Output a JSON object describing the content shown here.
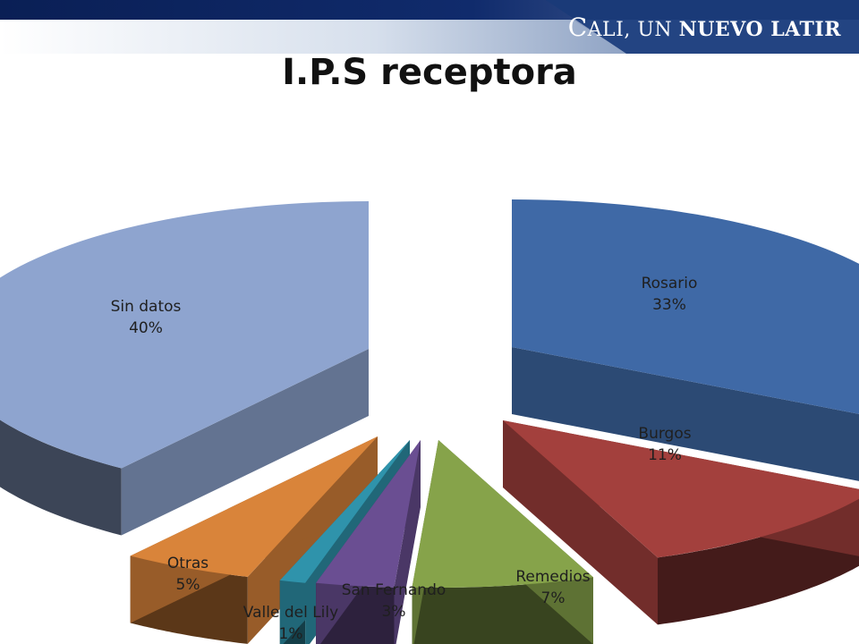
{
  "brand": {
    "initial": "C",
    "rest": "ALI, UN ",
    "highlight": "NUEVO LATIR"
  },
  "colors": {
    "bar_dark": "#0e2560",
    "bar_light": "#a9b9cf",
    "label_text": "#1f1f1f"
  },
  "chart_data": {
    "type": "pie",
    "style": "3d-exploded",
    "title": "I.P.S  receptora",
    "slices": [
      {
        "label": "Rosario",
        "percent": "33%",
        "value": 33,
        "color": "#3f69a6"
      },
      {
        "label": "Burgos",
        "percent": "11%",
        "value": 11,
        "color": "#a3403d"
      },
      {
        "label": "Remedios",
        "percent": "7%",
        "value": 7,
        "color": "#86a34a"
      },
      {
        "label": "San Fernando",
        "percent": "3%",
        "value": 3,
        "color": "#6a4e92"
      },
      {
        "label": "Valle del  Lily",
        "percent": "1%",
        "value": 1,
        "color": "#2f93ab"
      },
      {
        "label": "Otras",
        "percent": "5%",
        "value": 5,
        "color": "#d9843a"
      },
      {
        "label": "Sin  datos",
        "percent": "40%",
        "value": 40,
        "color": "#8ea4cf"
      }
    ]
  }
}
